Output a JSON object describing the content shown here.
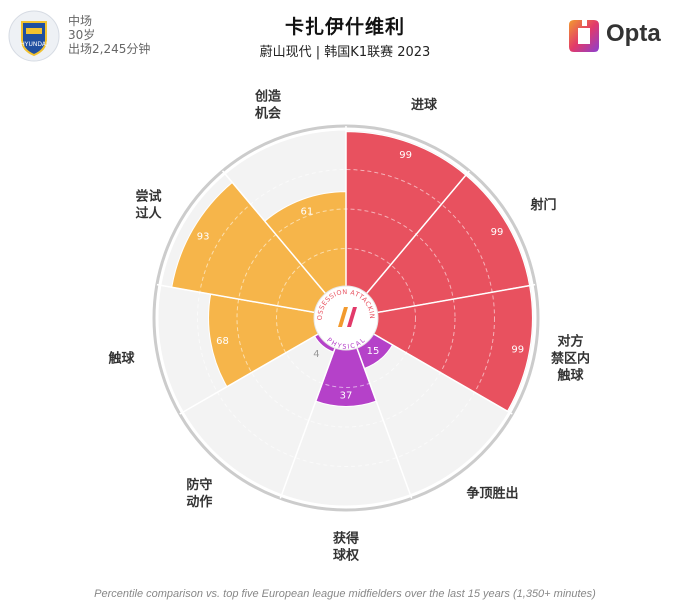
{
  "player": {
    "name": "卡扎伊什维利",
    "team_league": "蔚山现代 | 韩国K1联赛 2023",
    "position": "中场",
    "age": "30岁",
    "minutes": "出场2,245分钟",
    "badge_text": "HYUNDAI"
  },
  "brand": {
    "name": "Opta"
  },
  "hub": {
    "top_text": "POSSESSION ATTACKING",
    "bottom_text": "PHYSICAL"
  },
  "footer": "Percentile comparison vs. top five European league midfielders over the last 15 years (1,350+ minutes)",
  "colors": {
    "attacking": "#e8515f",
    "possession": "#f6b54a",
    "physical": "#b541c9",
    "background_wedge": "#f3f3f3",
    "ring": "#cccccc"
  },
  "chart_data": {
    "type": "polar-bar",
    "scale": [
      0,
      100
    ],
    "categories": [
      {
        "label": [
          "进球"
        ],
        "value": 99,
        "group": "attacking"
      },
      {
        "label": [
          "射门"
        ],
        "value": 99,
        "group": "attacking"
      },
      {
        "label": [
          "对方",
          "禁区内",
          "触球"
        ],
        "value": 99,
        "group": "attacking"
      },
      {
        "label": [
          "争顶胜出"
        ],
        "value": 15,
        "group": "physical"
      },
      {
        "label": [
          "获得",
          "球权"
        ],
        "value": 37,
        "group": "physical"
      },
      {
        "label": [
          "防守",
          "动作"
        ],
        "value": 4,
        "group": "physical"
      },
      {
        "label": [
          "触球"
        ],
        "value": 68,
        "group": "possession"
      },
      {
        "label": [
          "尝试",
          "过人"
        ],
        "value": 93,
        "group": "possession"
      },
      {
        "label": [
          "创造",
          "机会"
        ],
        "value": 61,
        "group": "possession"
      }
    ]
  }
}
